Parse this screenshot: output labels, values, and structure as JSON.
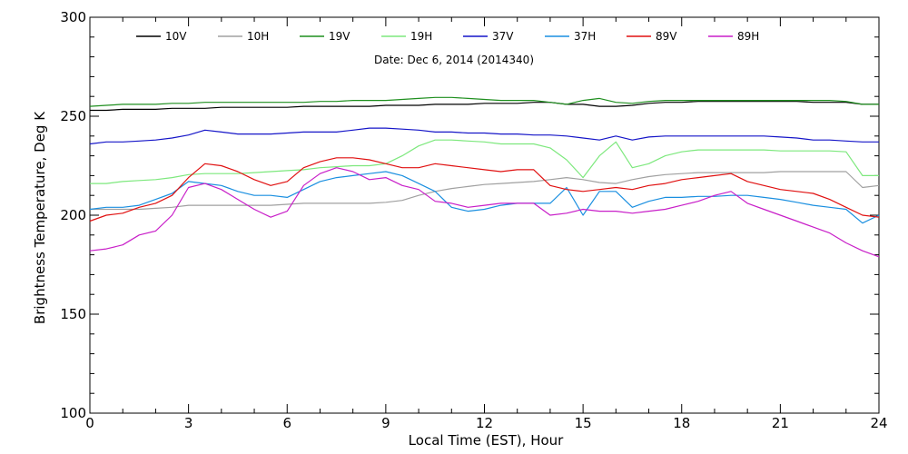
{
  "chart_data": {
    "type": "line",
    "title": "",
    "subtitle": "Date: Dec  6, 2014 (2014340)",
    "xlabel": "Local Time (EST), Hour",
    "ylabel": "Brightness Temperature, Deg K",
    "xlim": [
      0,
      24
    ],
    "ylim": [
      100,
      300
    ],
    "xticks": [
      0,
      3,
      6,
      9,
      12,
      15,
      18,
      21,
      24
    ],
    "yticks": [
      100,
      150,
      200,
      250,
      300
    ],
    "grid": false,
    "legend_position": "top",
    "colors": {
      "10V": "#000000",
      "10H": "#a0a0a0",
      "19V": "#1f8f1f",
      "19H": "#7de87d",
      "37V": "#1515c8",
      "37H": "#1a8fe0",
      "89V": "#e01010",
      "89H": "#c81ec8"
    },
    "x": [
      0,
      0.5,
      1,
      1.5,
      2,
      2.5,
      3,
      3.5,
      4,
      4.5,
      5,
      5.5,
      6,
      6.5,
      7,
      7.5,
      8,
      8.5,
      9,
      9.5,
      10,
      10.5,
      11,
      11.5,
      12,
      12.5,
      13,
      13.5,
      14,
      14.5,
      15,
      15.5,
      16,
      16.5,
      17,
      17.5,
      18,
      18.5,
      19,
      19.5,
      20,
      20.5,
      21,
      21.5,
      22,
      22.5,
      23,
      23.5,
      24
    ],
    "series": [
      {
        "name": "10V",
        "values": [
          253,
          253,
          253.5,
          253.5,
          253.5,
          254,
          254,
          254,
          254.5,
          254.5,
          254.5,
          254.5,
          254.5,
          255,
          255,
          255,
          255,
          255,
          255.5,
          255.5,
          255.5,
          256,
          256,
          256,
          256.5,
          256.5,
          256.5,
          257,
          257,
          256,
          256,
          255,
          255,
          255.5,
          256.5,
          257,
          257,
          257.5,
          257.5,
          257.5,
          257.5,
          257.5,
          257.5,
          257.5,
          257,
          257,
          257,
          256,
          256
        ]
      },
      {
        "name": "10H",
        "values": [
          203,
          203,
          203,
          203,
          203.5,
          204,
          205,
          205,
          205,
          205,
          205,
          205,
          205.5,
          206,
          206,
          206,
          206,
          206,
          206.5,
          207.5,
          210,
          212,
          213.5,
          214.5,
          215.5,
          216,
          216.5,
          217,
          218,
          219,
          218,
          216.5,
          216,
          218,
          219.5,
          220.5,
          221,
          221.5,
          221.5,
          221.5,
          221.5,
          221.5,
          222,
          222,
          222,
          222,
          222,
          214,
          215
        ]
      },
      {
        "name": "19V",
        "values": [
          255,
          255.5,
          256,
          256,
          256,
          256.5,
          256.5,
          257,
          257,
          257,
          257,
          257,
          257,
          257,
          257.5,
          257.5,
          258,
          258,
          258,
          258.5,
          259,
          259.5,
          259.5,
          259,
          258.5,
          258,
          258,
          258,
          257,
          256,
          258,
          259,
          257,
          256.5,
          257.5,
          258,
          258,
          258,
          258,
          258,
          258,
          258,
          258,
          258,
          258,
          258,
          257.5,
          256,
          256
        ]
      },
      {
        "name": "19H",
        "values": [
          216,
          216,
          217,
          217.5,
          218,
          219,
          220.5,
          221,
          221,
          221,
          221.5,
          222,
          222.5,
          223,
          224,
          224.5,
          225,
          225,
          226,
          230,
          235,
          238,
          238,
          237.5,
          237,
          236,
          236,
          236,
          234,
          228,
          219,
          230,
          237,
          224,
          226,
          230,
          232,
          233,
          233,
          233,
          233,
          233,
          232.5,
          232.5,
          232.5,
          232.5,
          232,
          220,
          220
        ]
      },
      {
        "name": "37V",
        "values": [
          236,
          237,
          237,
          237.5,
          238,
          239,
          240.5,
          243,
          242,
          241,
          241,
          241,
          241.5,
          242,
          242,
          242,
          243,
          244,
          244,
          243.5,
          243,
          242,
          242,
          241.5,
          241.5,
          241,
          241,
          240.5,
          240.5,
          240,
          239,
          238,
          240,
          238,
          239.5,
          240,
          240,
          240,
          240,
          240,
          240,
          240,
          239.5,
          239,
          238,
          238,
          237.5,
          237,
          237
        ]
      },
      {
        "name": "37H",
        "values": [
          203,
          204,
          204,
          205,
          208,
          211,
          217,
          216,
          215,
          212,
          210,
          210,
          209,
          213,
          217,
          219,
          220,
          221,
          222,
          220,
          216,
          212,
          204,
          202,
          203,
          205,
          206,
          206,
          206,
          214,
          200,
          212,
          212,
          204,
          207,
          209,
          209,
          209.5,
          209.5,
          210,
          210,
          209,
          208,
          206.5,
          205,
          204,
          203,
          196,
          200
        ]
      },
      {
        "name": "89V",
        "values": [
          197,
          200,
          201,
          204,
          206,
          210,
          219,
          226,
          225,
          222,
          218,
          215,
          217,
          224,
          227,
          229,
          229,
          228,
          226,
          224,
          224,
          226,
          225,
          224,
          223,
          222,
          223,
          223,
          215,
          213,
          212,
          213,
          214,
          213,
          215,
          216,
          218,
          219,
          220,
          221,
          217,
          215,
          213,
          212,
          211,
          208,
          204,
          200,
          199
        ]
      },
      {
        "name": "89H",
        "values": [
          182,
          183,
          185,
          190,
          192,
          200,
          214,
          216,
          213,
          208,
          203,
          199,
          202,
          215,
          221,
          224,
          222,
          218,
          219,
          215,
          213,
          207,
          206,
          204,
          205,
          206,
          206,
          206,
          200,
          201,
          203,
          202,
          202,
          201,
          202,
          203,
          205,
          207,
          210,
          212,
          206,
          203,
          200,
          197,
          194,
          191,
          186,
          182,
          179
        ]
      }
    ]
  }
}
